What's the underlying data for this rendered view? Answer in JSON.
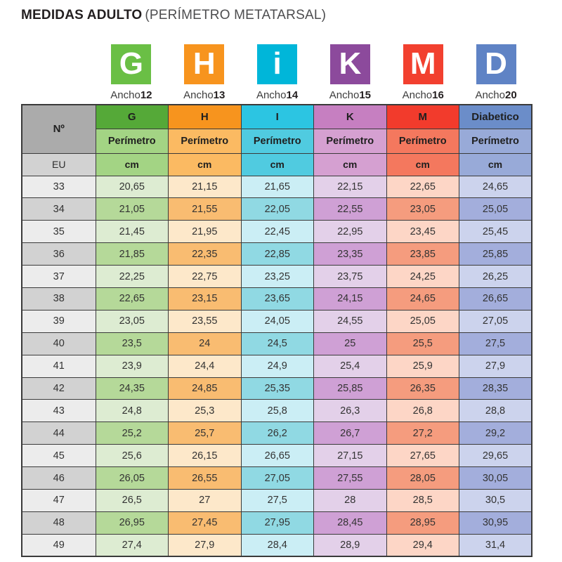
{
  "title": {
    "bold": "MEDIDAS ADULTO",
    "regular": "(PERÍMETRO METATARSAL)"
  },
  "columns": [
    {
      "id": "G",
      "badge_letter": "G",
      "badge_color": "#6abf45",
      "ancho_label": "Ancho",
      "ancho_value": "12",
      "header": "G",
      "header_color": "#55a938",
      "sub_color": "#a3d484",
      "row_light": "#ddecd2",
      "row_dark": "#b5d999"
    },
    {
      "id": "H",
      "badge_letter": "H",
      "badge_color": "#f7941e",
      "ancho_label": "Ancho",
      "ancho_value": "13",
      "header": "H",
      "header_color": "#f7941e",
      "sub_color": "#fbba62",
      "row_light": "#fde8ca",
      "row_dark": "#f9bc71"
    },
    {
      "id": "I",
      "badge_letter": "i",
      "badge_color": "#00b6d9",
      "ancho_label": "Ancho",
      "ancho_value": "14",
      "header": "I",
      "header_color": "#2cc5e2",
      "sub_color": "#50cbe0",
      "row_light": "#cbeef5",
      "row_dark": "#90d9e3"
    },
    {
      "id": "K",
      "badge_letter": "K",
      "badge_color": "#8c4a9c",
      "ancho_label": "Ancho",
      "ancho_value": "15",
      "header": "K",
      "header_color": "#c67fc1",
      "sub_color": "#d5a0d1",
      "row_light": "#e3d0e9",
      "row_dark": "#cfa0d5"
    },
    {
      "id": "M",
      "badge_letter": "M",
      "badge_color": "#f2402f",
      "ancho_label": "Ancho",
      "ancho_value": "16",
      "header": "M",
      "header_color": "#f23b2c",
      "sub_color": "#f4785e",
      "row_light": "#fdd6c6",
      "row_dark": "#f59c7e"
    },
    {
      "id": "D",
      "badge_letter": "D",
      "badge_color": "#5f83c5",
      "ancho_label": "Ancho",
      "ancho_value": "20",
      "header": "Diabetico",
      "header_color": "#6b8dc9",
      "sub_color": "#98aad8",
      "row_light": "#ccd3ed",
      "row_dark": "#a3aedc"
    }
  ],
  "table": {
    "corner_label": "Nº",
    "eu_label": "EU",
    "perimetro_label": "Perímetro",
    "cm_label": "cm",
    "corner_bg": "#ababab",
    "eu_bg": "#d2d2d2",
    "size_light": "#ececec",
    "size_dark": "#d2d2d2",
    "rows": [
      {
        "size": "33",
        "values": [
          "20,65",
          "21,15",
          "21,65",
          "22,15",
          "22,65",
          "24,65"
        ]
      },
      {
        "size": "34",
        "values": [
          "21,05",
          "21,55",
          "22,05",
          "22,55",
          "23,05",
          "25,05"
        ]
      },
      {
        "size": "35",
        "values": [
          "21,45",
          "21,95",
          "22,45",
          "22,95",
          "23,45",
          "25,45"
        ]
      },
      {
        "size": "36",
        "values": [
          "21,85",
          "22,35",
          "22,85",
          "23,35",
          "23,85",
          "25,85"
        ]
      },
      {
        "size": "37",
        "values": [
          "22,25",
          "22,75",
          "23,25",
          "23,75",
          "24,25",
          "26,25"
        ]
      },
      {
        "size": "38",
        "values": [
          "22,65",
          "23,15",
          "23,65",
          "24,15",
          "24,65",
          "26,65"
        ]
      },
      {
        "size": "39",
        "values": [
          "23,05",
          "23,55",
          "24,05",
          "24,55",
          "25,05",
          "27,05"
        ]
      },
      {
        "size": "40",
        "values": [
          "23,5",
          "24",
          "24,5",
          "25",
          "25,5",
          "27,5"
        ]
      },
      {
        "size": "41",
        "values": [
          "23,9",
          "24,4",
          "24,9",
          "25,4",
          "25,9",
          "27,9"
        ]
      },
      {
        "size": "42",
        "values": [
          "24,35",
          "24,85",
          "25,35",
          "25,85",
          "26,35",
          "28,35"
        ]
      },
      {
        "size": "43",
        "values": [
          "24,8",
          "25,3",
          "25,8",
          "26,3",
          "26,8",
          "28,8"
        ]
      },
      {
        "size": "44",
        "values": [
          "25,2",
          "25,7",
          "26,2",
          "26,7",
          "27,2",
          "29,2"
        ]
      },
      {
        "size": "45",
        "values": [
          "25,6",
          "26,15",
          "26,65",
          "27,15",
          "27,65",
          "29,65"
        ]
      },
      {
        "size": "46",
        "values": [
          "26,05",
          "26,55",
          "27,05",
          "27,55",
          "28,05",
          "30,05"
        ]
      },
      {
        "size": "47",
        "values": [
          "26,5",
          "27",
          "27,5",
          "28",
          "28,5",
          "30,5"
        ]
      },
      {
        "size": "48",
        "values": [
          "26,95",
          "27,45",
          "27,95",
          "28,45",
          "28,95",
          "30,95"
        ]
      },
      {
        "size": "49",
        "values": [
          "27,4",
          "27,9",
          "28,4",
          "28,9",
          "29,4",
          "31,4"
        ]
      }
    ]
  },
  "chart_data": {
    "type": "table",
    "title": "MEDIDAS ADULTO (PERÍMETRO METATARSAL)",
    "unit": "cm",
    "row_header": "Nº EU",
    "categories": [
      33,
      34,
      35,
      36,
      37,
      38,
      39,
      40,
      41,
      42,
      43,
      44,
      45,
      46,
      47,
      48,
      49
    ],
    "series": [
      {
        "name": "G (Ancho 12)",
        "values": [
          20.65,
          21.05,
          21.45,
          21.85,
          22.25,
          22.65,
          23.05,
          23.5,
          23.9,
          24.35,
          24.8,
          25.2,
          25.6,
          26.05,
          26.5,
          26.95,
          27.4
        ]
      },
      {
        "name": "H (Ancho 13)",
        "values": [
          21.15,
          21.55,
          21.95,
          22.35,
          22.75,
          23.15,
          23.55,
          24,
          24.4,
          24.85,
          25.3,
          25.7,
          26.15,
          26.55,
          27,
          27.45,
          27.9
        ]
      },
      {
        "name": "I (Ancho 14)",
        "values": [
          21.65,
          22.05,
          22.45,
          22.85,
          23.25,
          23.65,
          24.05,
          24.5,
          24.9,
          25.35,
          25.8,
          26.2,
          26.65,
          27.05,
          27.5,
          27.95,
          28.4
        ]
      },
      {
        "name": "K (Ancho 15)",
        "values": [
          22.15,
          22.55,
          22.95,
          23.35,
          23.75,
          24.15,
          24.55,
          25,
          25.4,
          25.85,
          26.3,
          26.7,
          27.15,
          27.55,
          28,
          28.45,
          28.9
        ]
      },
      {
        "name": "M (Ancho 16)",
        "values": [
          22.65,
          23.05,
          23.45,
          23.85,
          24.25,
          24.65,
          25.05,
          25.5,
          25.9,
          26.35,
          26.8,
          27.2,
          27.65,
          28.05,
          28.5,
          28.95,
          29.4
        ]
      },
      {
        "name": "Diabetico (Ancho 20)",
        "values": [
          24.65,
          25.05,
          25.45,
          25.85,
          26.25,
          26.65,
          27.05,
          27.5,
          27.9,
          28.35,
          28.8,
          29.2,
          29.65,
          30.05,
          30.5,
          30.95,
          31.4
        ]
      }
    ]
  }
}
